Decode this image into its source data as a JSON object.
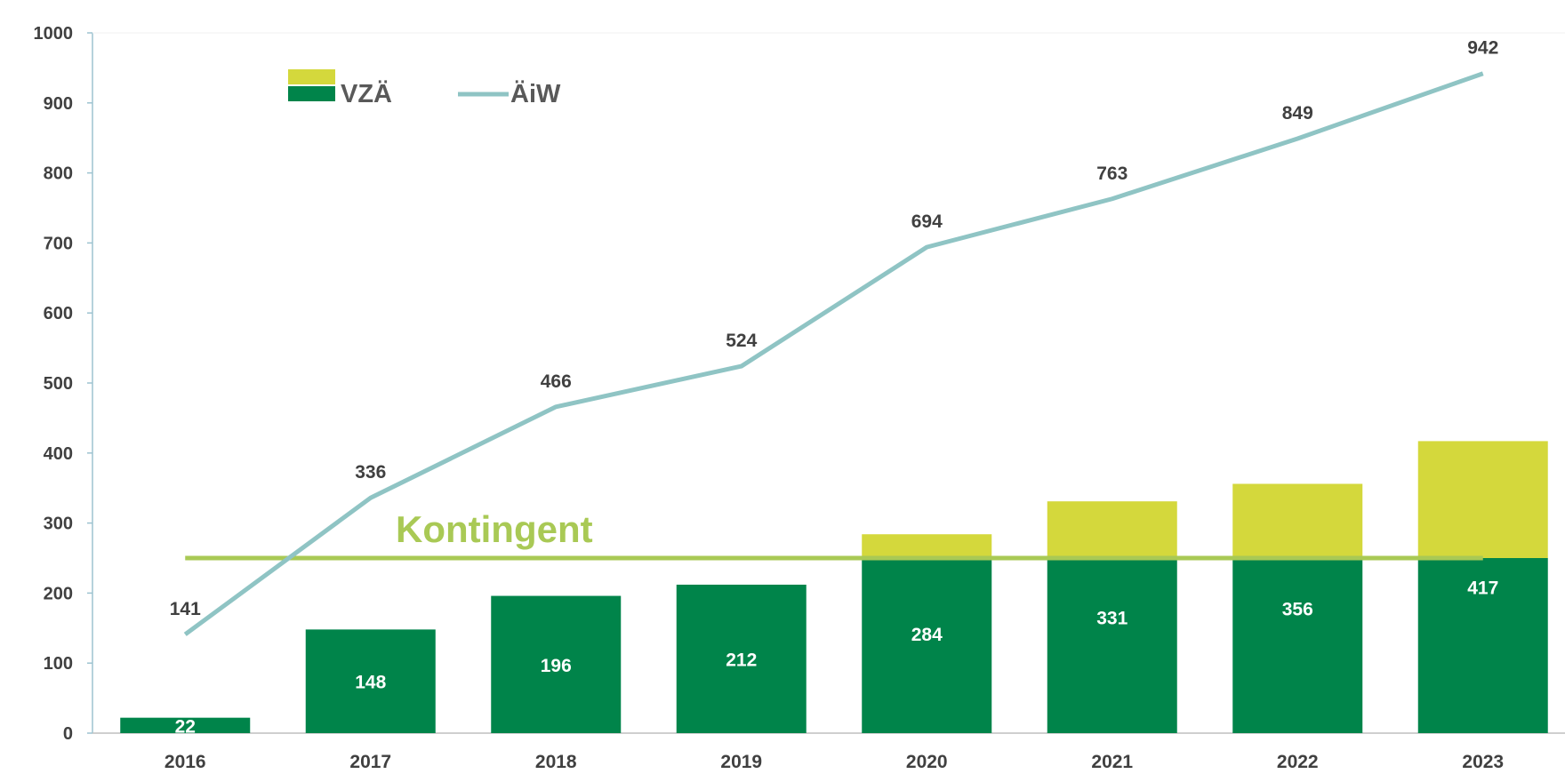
{
  "chart_data": {
    "type": "bar",
    "categories": [
      "2016",
      "2017",
      "2018",
      "2019",
      "2020",
      "2021",
      "2022",
      "2023"
    ],
    "series": [
      {
        "name": "VZÄ",
        "type": "bar",
        "values": [
          22,
          148,
          196,
          212,
          284,
          331,
          356,
          417
        ],
        "colors": {
          "within": "#00844a",
          "above": "#d4d83c"
        }
      },
      {
        "name": "ÄiW",
        "type": "line",
        "values": [
          141,
          336,
          466,
          524,
          694,
          763,
          849,
          942
        ],
        "color": "#8fc4c4"
      }
    ],
    "reference_line": {
      "label": "Kontingent",
      "value": 250,
      "color": "#a9c955"
    },
    "ylim": [
      0,
      1000
    ],
    "yticks": [
      0,
      100,
      200,
      300,
      400,
      500,
      600,
      700,
      800,
      900,
      1000
    ],
    "legend_position": "top-left",
    "grid": false
  }
}
